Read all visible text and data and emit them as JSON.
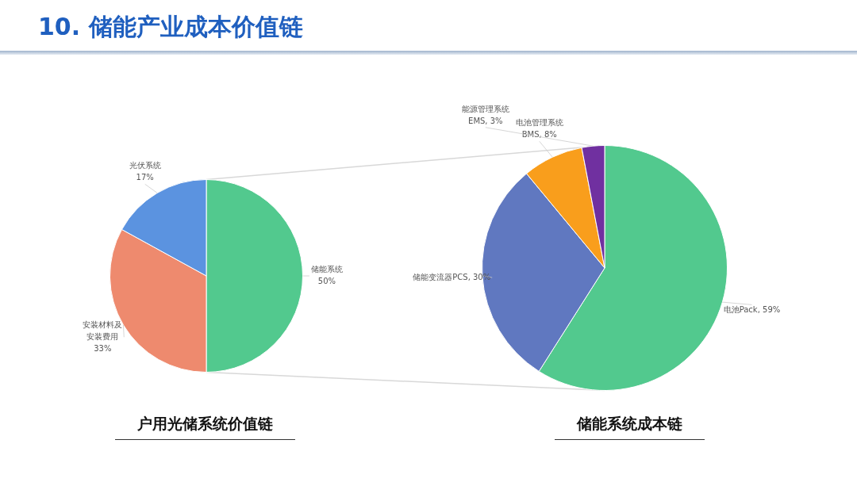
{
  "chart_data": [
    {
      "type": "pie",
      "title": "户用光储系统价值链",
      "annotations": [
        "10. 储能产业成本价值链"
      ],
      "categories": [
        "储能系统",
        "安装材料及安装费用",
        "光伏系统"
      ],
      "values": [
        50,
        33,
        17
      ],
      "colors": [
        "#52c98e",
        "#ee8a6e",
        "#5b93e0"
      ],
      "value_labels": [
        "50%",
        "33%",
        "17%"
      ]
    },
    {
      "type": "pie",
      "title": "储能系统成本链",
      "categories": [
        "电池Pack",
        "储能变流器PCS",
        "电池管理系统\nBMS",
        "能源管理系统\nEMS"
      ],
      "values": [
        59,
        30,
        8,
        3
      ],
      "colors": [
        "#52c98e",
        "#6078c0",
        "#f99e1c",
        "#7030a0"
      ],
      "value_labels": [
        "59%",
        "30%",
        "8%",
        "3%"
      ]
    }
  ]
}
